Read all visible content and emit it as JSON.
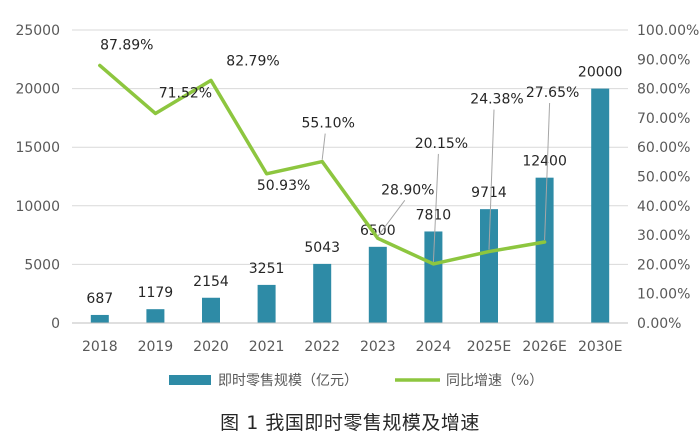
{
  "chart_data": {
    "type": "bar+line",
    "categories": [
      "2018",
      "2019",
      "2020",
      "2021",
      "2022",
      "2023",
      "2024",
      "2025E",
      "2026E",
      "2030E"
    ],
    "series": [
      {
        "name": "即时零售规模（亿元）",
        "type": "bar",
        "axis": "left",
        "color": "#2e8ba6",
        "values": [
          687,
          1179,
          2154,
          3251,
          5043,
          6500,
          7810,
          9714,
          12400,
          20000
        ],
        "labels": [
          "687",
          "1179",
          "2154",
          "3251",
          "5043",
          "6500",
          "7810",
          "9714",
          "12400",
          "20000"
        ]
      },
      {
        "name": "同比增速（%）",
        "type": "line",
        "axis": "right",
        "color": "#8dc63f",
        "values": [
          87.89,
          71.52,
          82.79,
          50.93,
          55.1,
          28.9,
          20.15,
          24.38,
          27.65,
          null
        ],
        "labels": [
          "87.89%",
          "71.52%",
          "82.79%",
          "50.93%",
          "55.10%",
          "28.90%",
          "20.15%",
          "24.38%",
          "27.65%",
          ""
        ]
      }
    ],
    "y_left": {
      "min": 0,
      "max": 25000,
      "ticks": [
        "0",
        "5000",
        "10000",
        "15000",
        "20000",
        "25000"
      ]
    },
    "y_right": {
      "min": 0,
      "max": 100,
      "ticks": [
        "0.00%",
        "10.00%",
        "20.00%",
        "30.00%",
        "40.00%",
        "50.00%",
        "60.00%",
        "70.00%",
        "80.00%",
        "90.00%",
        "100.00%"
      ]
    },
    "legend": [
      "即时零售规模（亿元）",
      "同比增速（%）"
    ],
    "legend_position": "bottom",
    "title": "图 1  我国即时零售规模及增速"
  }
}
